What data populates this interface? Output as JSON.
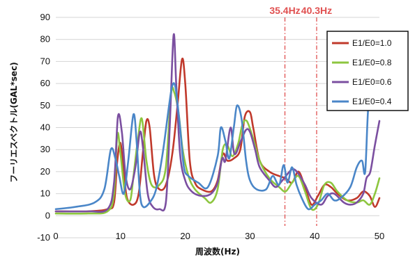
{
  "chart_data": {
    "type": "line",
    "xlabel": "周波数(Hz)",
    "ylabel": "フーリエスペクトル(GAL*sec)",
    "xlim": [
      0,
      50
    ],
    "ylim": [
      -10,
      90
    ],
    "x_ticks": [
      0,
      10,
      20,
      30,
      40,
      50
    ],
    "y_ticks": [
      -10,
      0,
      10,
      20,
      30,
      40,
      50,
      60,
      70,
      80,
      90
    ],
    "grid": "horizontal",
    "legend_position": "top-right",
    "annotations": [
      {
        "label": "35.4Hz",
        "x": 35.4,
        "style": "dash-dot",
        "color": "#e05050"
      },
      {
        "label": "40.3Hz",
        "x": 40.3,
        "style": "dash-dot",
        "color": "#e05050"
      }
    ],
    "series": [
      {
        "name": "E1/E0=1.0",
        "color": "#c0392b",
        "points": [
          [
            0,
            2
          ],
          [
            5,
            2
          ],
          [
            8,
            3
          ],
          [
            9,
            6
          ],
          [
            9.5,
            25
          ],
          [
            10,
            33
          ],
          [
            10.5,
            20
          ],
          [
            11,
            8
          ],
          [
            12,
            5
          ],
          [
            12.8,
            10
          ],
          [
            13.5,
            30
          ],
          [
            14,
            43
          ],
          [
            14.5,
            40
          ],
          [
            15.2,
            18
          ],
          [
            16,
            12
          ],
          [
            17,
            14
          ],
          [
            18,
            28
          ],
          [
            18.8,
            50
          ],
          [
            19.5,
            71
          ],
          [
            20,
            60
          ],
          [
            20.7,
            25
          ],
          [
            21.5,
            15
          ],
          [
            22.5,
            12
          ],
          [
            24,
            11
          ],
          [
            25,
            16
          ],
          [
            25.8,
            28
          ],
          [
            26.5,
            25
          ],
          [
            27.5,
            26
          ],
          [
            28.5,
            30
          ],
          [
            29.2,
            45
          ],
          [
            30,
            47
          ],
          [
            30.5,
            40
          ],
          [
            31.5,
            25
          ],
          [
            33,
            20
          ],
          [
            34.5,
            18
          ],
          [
            35.5,
            17
          ],
          [
            36.5,
            15
          ],
          [
            37.5,
            20
          ],
          [
            38.5,
            13
          ],
          [
            39.5,
            5
          ],
          [
            40.5,
            9
          ],
          [
            41.5,
            14
          ],
          [
            42.5,
            13
          ],
          [
            43.5,
            10
          ],
          [
            45,
            7
          ],
          [
            46.5,
            8
          ],
          [
            47.5,
            11
          ],
          [
            48.5,
            9
          ],
          [
            49.3,
            4
          ],
          [
            50,
            8
          ]
        ]
      },
      {
        "name": "E1/E0=0.8",
        "color": "#8dc63f",
        "points": [
          [
            0,
            1
          ],
          [
            5,
            1
          ],
          [
            8,
            2
          ],
          [
            9,
            10
          ],
          [
            9.5,
            37
          ],
          [
            10,
            28
          ],
          [
            10.7,
            10
          ],
          [
            11.5,
            7
          ],
          [
            12,
            18
          ],
          [
            12.7,
            35
          ],
          [
            13.3,
            44
          ],
          [
            14,
            25
          ],
          [
            14.8,
            14
          ],
          [
            16,
            14
          ],
          [
            17,
            22
          ],
          [
            17.8,
            55
          ],
          [
            18.3,
            56
          ],
          [
            19,
            46
          ],
          [
            19.6,
            30
          ],
          [
            20.5,
            18
          ],
          [
            21.5,
            12
          ],
          [
            23,
            8
          ],
          [
            24,
            6
          ],
          [
            25,
            12
          ],
          [
            25.8,
            30
          ],
          [
            26.5,
            32
          ],
          [
            27.3,
            27
          ],
          [
            28.2,
            33
          ],
          [
            28.8,
            41
          ],
          [
            29.5,
            43
          ],
          [
            30.5,
            35
          ],
          [
            31.5,
            25
          ],
          [
            33,
            17
          ],
          [
            34.5,
            13
          ],
          [
            35.5,
            11
          ],
          [
            36.5,
            15
          ],
          [
            37.5,
            18
          ],
          [
            38.5,
            11
          ],
          [
            39.5,
            3
          ],
          [
            40.5,
            5
          ],
          [
            41.5,
            14
          ],
          [
            42.5,
            15
          ],
          [
            43.5,
            11
          ],
          [
            45,
            7
          ],
          [
            46.5,
            6
          ],
          [
            47.5,
            7
          ],
          [
            48.5,
            5
          ],
          [
            49.3,
            10
          ],
          [
            50,
            17
          ]
        ]
      },
      {
        "name": "E1/E0=0.6",
        "color": "#7b4fa0",
        "points": [
          [
            0,
            2
          ],
          [
            5,
            2
          ],
          [
            8,
            3
          ],
          [
            9,
            15
          ],
          [
            9.6,
            45
          ],
          [
            10.2,
            38
          ],
          [
            10.8,
            18
          ],
          [
            11.5,
            12
          ],
          [
            12.3,
            22
          ],
          [
            13,
            38
          ],
          [
            13.5,
            30
          ],
          [
            14.2,
            10
          ],
          [
            15,
            4
          ],
          [
            16,
            3
          ],
          [
            17,
            6
          ],
          [
            17.6,
            40
          ],
          [
            18.2,
            82
          ],
          [
            18.6,
            60
          ],
          [
            19.2,
            28
          ],
          [
            20,
            16
          ],
          [
            21,
            11
          ],
          [
            22.5,
            9
          ],
          [
            24,
            10
          ],
          [
            25,
            15
          ],
          [
            25.7,
            26
          ],
          [
            26.2,
            25
          ],
          [
            27,
            40
          ],
          [
            27.6,
            28
          ],
          [
            28.6,
            34
          ],
          [
            29.4,
            39
          ],
          [
            30,
            38
          ],
          [
            30.8,
            30
          ],
          [
            31.5,
            22
          ],
          [
            33,
            16
          ],
          [
            34,
            13
          ],
          [
            35,
            16
          ],
          [
            36.5,
            21
          ],
          [
            37.5,
            19
          ],
          [
            38.5,
            14
          ],
          [
            39.5,
            8
          ],
          [
            41,
            5
          ],
          [
            42,
            9
          ],
          [
            43,
            10
          ],
          [
            44.5,
            6
          ],
          [
            45.5,
            5
          ],
          [
            46.5,
            6
          ],
          [
            47.5,
            10
          ],
          [
            48,
            17
          ],
          [
            48.6,
            20
          ],
          [
            49.3,
            32
          ],
          [
            50,
            43
          ]
        ]
      },
      {
        "name": "E1/E0=0.4",
        "color": "#4a86c8",
        "points": [
          [
            0,
            3
          ],
          [
            3,
            4
          ],
          [
            6,
            6
          ],
          [
            7.5,
            12
          ],
          [
            8.5,
            30
          ],
          [
            9.2,
            26
          ],
          [
            9.8,
            18
          ],
          [
            10.5,
            10
          ],
          [
            11.2,
            25
          ],
          [
            12,
            46
          ],
          [
            12.5,
            33
          ],
          [
            13,
            10
          ],
          [
            13.5,
            4
          ],
          [
            14.5,
            6
          ],
          [
            15.5,
            12
          ],
          [
            16.5,
            28
          ],
          [
            17.5,
            50
          ],
          [
            18,
            59
          ],
          [
            18.5,
            58
          ],
          [
            19.2,
            40
          ],
          [
            19.8,
            22
          ],
          [
            20.5,
            18
          ],
          [
            22,
            15
          ],
          [
            23.5,
            13
          ],
          [
            25,
            27
          ],
          [
            25.5,
            40
          ],
          [
            26.2,
            34
          ],
          [
            26.8,
            26
          ],
          [
            27.5,
            40
          ],
          [
            28,
            50
          ],
          [
            28.7,
            44
          ],
          [
            29.4,
            25
          ],
          [
            30,
            16
          ],
          [
            31,
            12
          ],
          [
            32.5,
            12
          ],
          [
            33.5,
            18
          ],
          [
            34.5,
            14
          ],
          [
            35.2,
            23
          ],
          [
            35.8,
            15
          ],
          [
            36.5,
            22
          ],
          [
            37.2,
            14
          ],
          [
            38,
            8
          ],
          [
            39,
            3
          ],
          [
            40,
            5
          ],
          [
            41,
            7
          ],
          [
            42,
            10
          ],
          [
            43,
            7
          ],
          [
            44,
            8
          ],
          [
            45.5,
            13
          ],
          [
            46.5,
            22
          ],
          [
            47.3,
            25
          ],
          [
            47.8,
            20
          ],
          [
            48.3,
            50
          ],
          [
            49,
            53
          ],
          [
            49.5,
            52
          ],
          [
            50,
            53
          ]
        ]
      }
    ]
  }
}
